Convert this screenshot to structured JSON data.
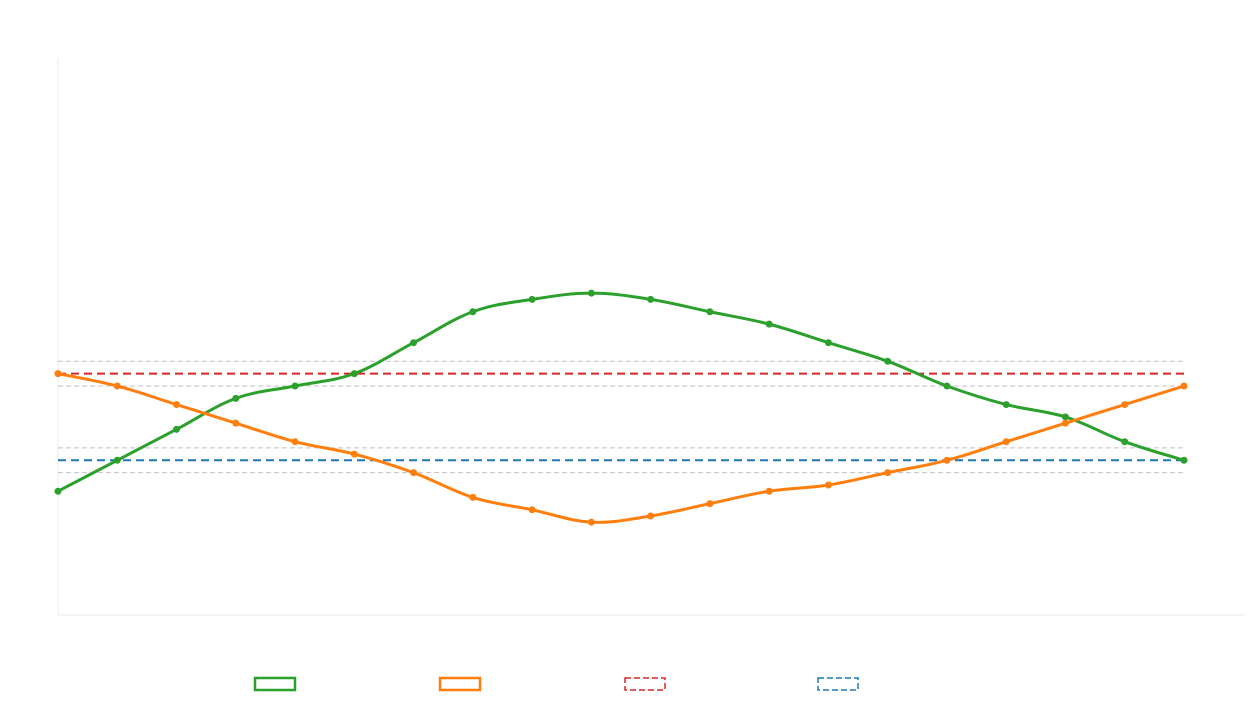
{
  "chart_data": {
    "type": "line",
    "title": "",
    "xlabel": "",
    "ylabel": "",
    "x": [
      1,
      2,
      3,
      4,
      5,
      6,
      7,
      8,
      9,
      10,
      11,
      12,
      13,
      14,
      15,
      16,
      17,
      18,
      19,
      20
    ],
    "ylim": [
      0,
      9
    ],
    "grid": false,
    "legend_position": "bottom",
    "series": [
      {
        "name": "",
        "color": "#2ca02c",
        "style": "solid",
        "values": [
          2.0,
          2.5,
          3.0,
          3.5,
          3.7,
          3.9,
          4.4,
          4.9,
          5.1,
          5.2,
          5.1,
          4.9,
          4.7,
          4.4,
          4.1,
          3.7,
          3.4,
          3.2,
          2.8,
          2.5
        ]
      },
      {
        "name": "",
        "color": "#ff7f0e",
        "style": "solid",
        "values": [
          3.9,
          3.7,
          3.4,
          3.1,
          2.8,
          2.6,
          2.3,
          1.9,
          1.7,
          1.5,
          1.6,
          1.8,
          2.0,
          2.1,
          2.3,
          2.5,
          2.8,
          3.1,
          3.4,
          3.7
        ]
      }
    ],
    "reference_lines": [
      {
        "name": "",
        "color": "#d62728",
        "style": "dashed",
        "value": 3.9,
        "band": [
          3.7,
          4.1
        ]
      },
      {
        "name": "",
        "color": "#1f77b4",
        "style": "dashed",
        "value": 2.5,
        "band": [
          2.3,
          2.7
        ]
      }
    ]
  }
}
